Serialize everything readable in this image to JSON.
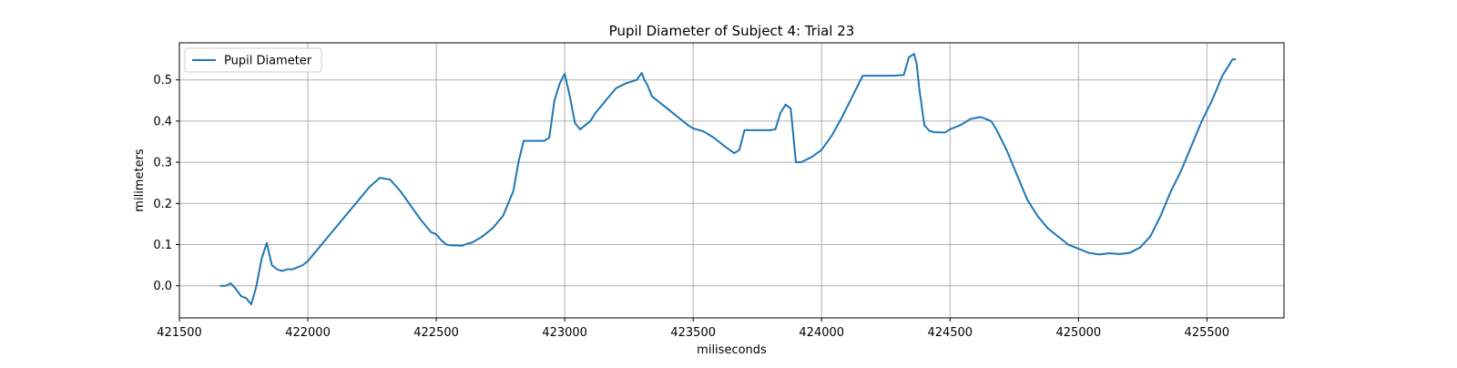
{
  "chart_data": {
    "type": "line",
    "title": "Pupil Diameter of Subject 4: Trial 23",
    "xlabel": "miliseconds",
    "ylabel": "milimeters",
    "xlim": [
      421500,
      425800
    ],
    "ylim": [
      -0.078,
      0.59
    ],
    "xticks": [
      421500,
      422000,
      422500,
      423000,
      423500,
      424000,
      424500,
      425000,
      425500
    ],
    "yticks": [
      0.0,
      0.1,
      0.2,
      0.3,
      0.4,
      0.5
    ],
    "xtick_labels": [
      "421500",
      "422000",
      "422500",
      "423000",
      "423500",
      "424000",
      "424500",
      "425000",
      "425500"
    ],
    "ytick_labels": [
      "0.0",
      "0.1",
      "0.2",
      "0.3",
      "0.4",
      "0.5"
    ],
    "grid": true,
    "legend_position": "upper-left",
    "colors": {
      "series": "#1f77b4",
      "grid": "#b0b0b0",
      "axes": "#000000"
    },
    "series": [
      {
        "name": "Pupil Diameter",
        "x": [
          421660,
          421680,
          421700,
          421720,
          421740,
          421760,
          421780,
          421800,
          421820,
          421840,
          421860,
          421880,
          421900,
          421920,
          421940,
          421960,
          421980,
          422000,
          422040,
          422080,
          422120,
          422160,
          422200,
          422240,
          422280,
          422320,
          422360,
          422400,
          422440,
          422480,
          422500,
          422520,
          422540,
          422560,
          422580,
          422600,
          422620,
          422640,
          422680,
          422720,
          422760,
          422800,
          422820,
          422840,
          422860,
          422880,
          422900,
          422920,
          422940,
          422960,
          422980,
          423000,
          423020,
          423040,
          423060,
          423080,
          423100,
          423120,
          423160,
          423200,
          423240,
          423280,
          423300,
          423310,
          423320,
          423340,
          423360,
          423400,
          423440,
          423480,
          423500,
          423540,
          423580,
          423620,
          423660,
          423680,
          423700,
          423720,
          423760,
          423800,
          423820,
          423840,
          423860,
          423880,
          423900,
          423920,
          423960,
          424000,
          424040,
          424080,
          424120,
          424160,
          424200,
          424240,
          424280,
          424320,
          424340,
          424360,
          424370,
          424380,
          424400,
          424420,
          424440,
          424480,
          424500,
          424520,
          424540,
          424580,
          424620,
          424640,
          424660,
          424680,
          424720,
          424760,
          424800,
          424840,
          424880,
          424920,
          424960,
          425000,
          425040,
          425080,
          425120,
          425160,
          425200,
          425240,
          425280,
          425320,
          425360,
          425400,
          425440,
          425480,
          425520,
          425560,
          425600,
          425610
        ],
        "y": [
          0.0,
          0.0,
          0.006,
          -0.008,
          -0.025,
          -0.03,
          -0.045,
          0.0,
          0.065,
          0.104,
          0.05,
          0.04,
          0.036,
          0.04,
          0.04,
          0.045,
          0.05,
          0.06,
          0.09,
          0.12,
          0.15,
          0.18,
          0.21,
          0.24,
          0.262,
          0.258,
          0.23,
          0.195,
          0.16,
          0.13,
          0.125,
          0.11,
          0.1,
          0.098,
          0.098,
          0.097,
          0.102,
          0.105,
          0.12,
          0.14,
          0.17,
          0.23,
          0.3,
          0.352,
          0.352,
          0.352,
          0.352,
          0.352,
          0.36,
          0.45,
          0.49,
          0.515,
          0.46,
          0.395,
          0.38,
          0.39,
          0.4,
          0.42,
          0.45,
          0.48,
          0.492,
          0.5,
          0.517,
          0.5,
          0.49,
          0.46,
          0.45,
          0.43,
          0.41,
          0.39,
          0.382,
          0.375,
          0.36,
          0.34,
          0.322,
          0.33,
          0.378,
          0.378,
          0.378,
          0.378,
          0.38,
          0.42,
          0.44,
          0.43,
          0.3,
          0.3,
          0.312,
          0.33,
          0.365,
          0.41,
          0.46,
          0.51,
          0.51,
          0.51,
          0.51,
          0.512,
          0.555,
          0.563,
          0.54,
          0.48,
          0.39,
          0.376,
          0.373,
          0.372,
          0.38,
          0.385,
          0.39,
          0.405,
          0.41,
          0.405,
          0.4,
          0.38,
          0.33,
          0.27,
          0.21,
          0.17,
          0.14,
          0.12,
          0.1,
          0.09,
          0.08,
          0.076,
          0.079,
          0.077,
          0.08,
          0.093,
          0.12,
          0.17,
          0.23,
          0.28,
          0.34,
          0.4,
          0.45,
          0.51,
          0.55,
          0.55
        ]
      }
    ]
  }
}
